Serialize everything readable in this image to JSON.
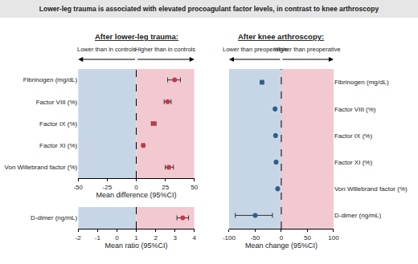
{
  "title": "Lower-leg trauma is associated with elevated procoagulant factor levels, in contrast to knee arthroscopy",
  "chart_data": [
    {
      "type": "scatter",
      "title": "After lower-leg trauma:",
      "orientation": "horizontal",
      "categories": [
        "Fibrinogen (mg/dL)",
        "Factor VIII (%)",
        "Factor IX (%)",
        "Factor XI (%)",
        "Von Willebrand factor (%)"
      ],
      "values": [
        33,
        27,
        15,
        6,
        28
      ],
      "ci_low": [
        27,
        24,
        13,
        5,
        25
      ],
      "ci_high": [
        38,
        30,
        17,
        7,
        32
      ],
      "color": "#c0394b",
      "marker": "circle",
      "xlabel": "Mean difference (95%CI)",
      "xlim": [
        -50,
        50
      ],
      "xticks": [
        -50,
        -25,
        0,
        25,
        50
      ],
      "reference": 0,
      "annotations": [
        "Lower than in controls",
        "Higher than in controls"
      ],
      "grid": false
    },
    {
      "type": "scatter",
      "orientation": "horizontal",
      "categories": [
        "D-dimer (ng/mL)"
      ],
      "values": [
        3.4
      ],
      "ci_low": [
        3.1
      ],
      "ci_high": [
        3.7
      ],
      "color": "#c0394b",
      "marker": "circle",
      "xlabel": "Mean ratio (95%CI)",
      "xlim": [
        -2,
        4
      ],
      "xticks": [
        -2,
        -1,
        0,
        1,
        2,
        3,
        4
      ],
      "reference": 1,
      "grid": false
    },
    {
      "type": "scatter",
      "title": "After knee arthroscopy:",
      "orientation": "horizontal",
      "categories": [
        "Fibrinogen (mg/dL)",
        "Factor VIII (%)",
        "Factor IX (%)",
        "Factor XI (%)",
        "Von Willebrand factor (%)",
        "D-dimer (ng/mL)"
      ],
      "values": [
        -37,
        -12,
        -11,
        -10,
        -7,
        -50
      ],
      "ci_low": [
        -40,
        -13,
        -12,
        -11,
        -8,
        -88
      ],
      "ci_high": [
        -34,
        -11,
        -10,
        -9,
        -6,
        -17
      ],
      "color": "#2c5f8a",
      "marker": "circle",
      "xlabel": "Mean change (95%CI)",
      "xlim": [
        -100,
        100
      ],
      "xticks": [
        -100,
        -50,
        0,
        50,
        100
      ],
      "reference": 0,
      "annotations": [
        "Lower than preoperative",
        "Higher than preoperative"
      ],
      "grid": false
    }
  ]
}
